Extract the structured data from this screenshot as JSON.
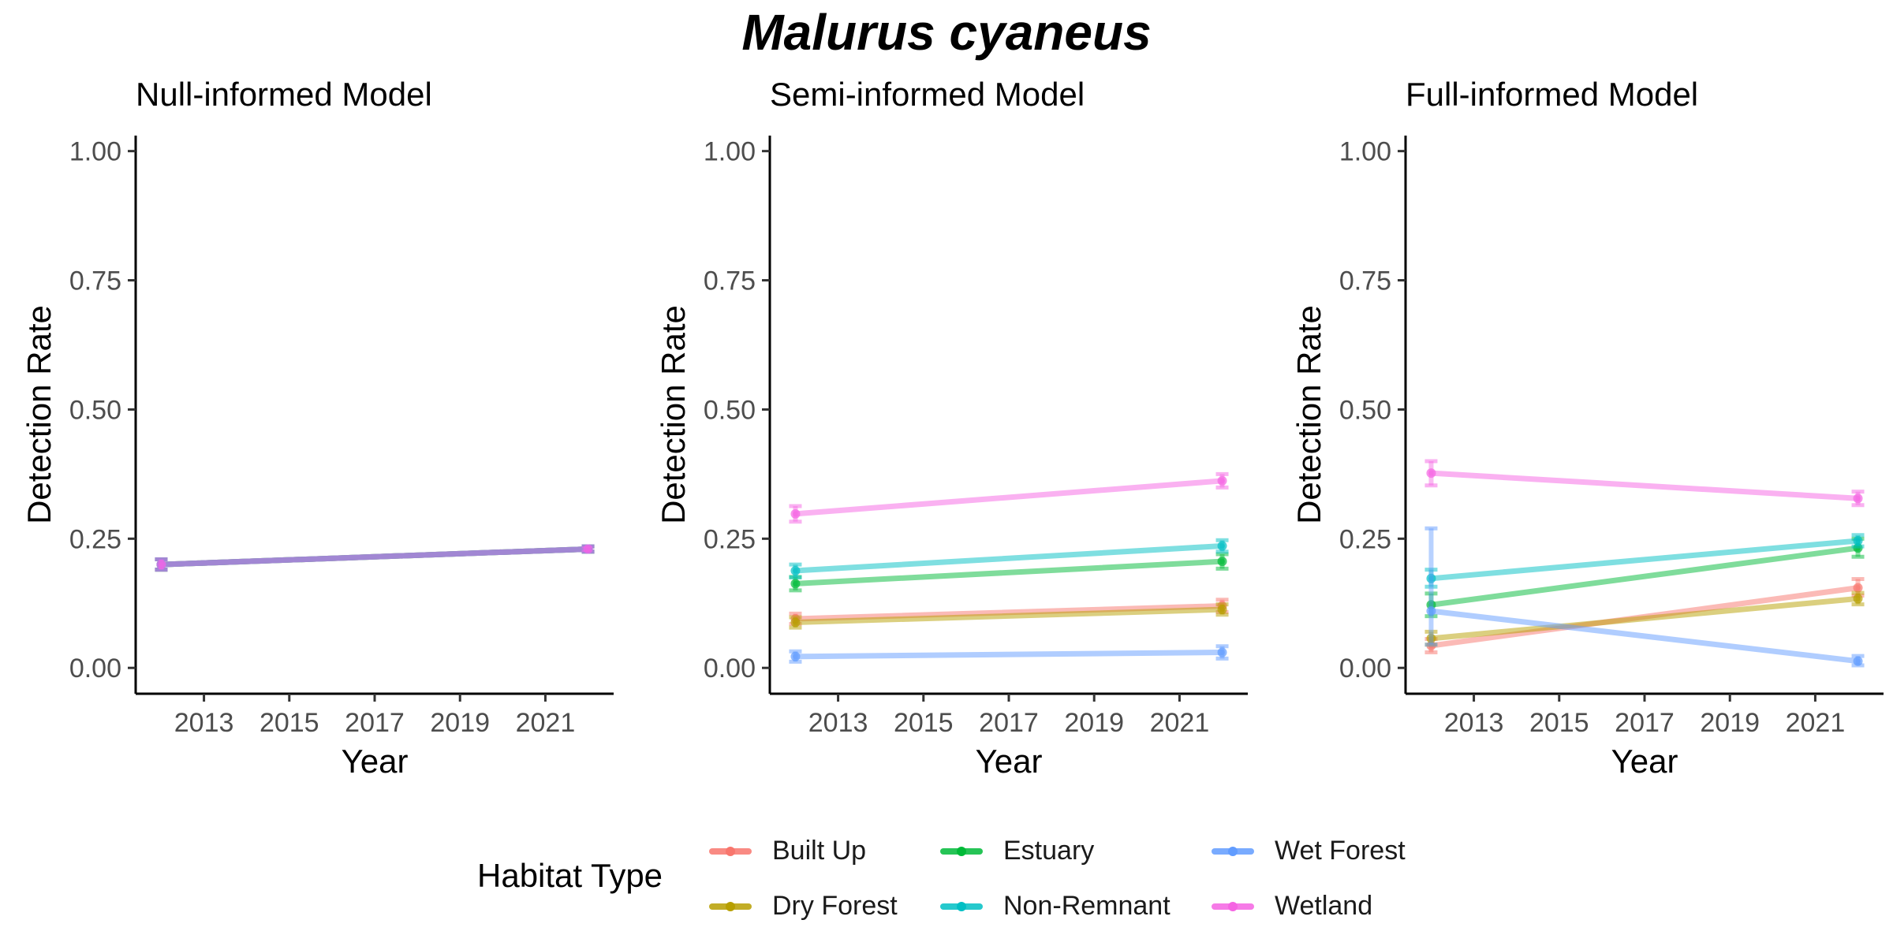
{
  "chart_data": {
    "title": "Malurus cyaneus",
    "type": "line",
    "x_ticks": [
      2013,
      2015,
      2017,
      2019,
      2021
    ],
    "y_ticks": [
      "0.00",
      "0.25",
      "0.50",
      "0.75",
      "1.00"
    ],
    "xlim": [
      2011.4,
      2022.6
    ],
    "ylim": [
      -0.05,
      1.03
    ],
    "xlabel": "Year",
    "ylabel": "Detection Rate",
    "legend": {
      "title": "Habitat Type",
      "placement": "bottom",
      "items": [
        {
          "name": "Built Up",
          "color": "#F8766D"
        },
        {
          "name": "Dry Forest",
          "color": "#B79F00"
        },
        {
          "name": "Estuary",
          "color": "#00BA38"
        },
        {
          "name": "Non-Remnant",
          "color": "#00BFC4"
        },
        {
          "name": "Wet Forest",
          "color": "#619CFF"
        },
        {
          "name": "Wetland",
          "color": "#F564E3"
        }
      ]
    },
    "panels": [
      {
        "title": "Null-informed Model",
        "series": [
          {
            "name": "Built Up",
            "color": "#F8766D",
            "x": [
              2012,
              2022
            ],
            "y": [
              0.2,
              0.23
            ],
            "err": [
              [
                0.19,
                0.21
              ],
              [
                0.225,
                0.235
              ]
            ]
          },
          {
            "name": "Dry Forest",
            "color": "#B79F00",
            "x": [
              2012,
              2022
            ],
            "y": [
              0.2,
              0.23
            ],
            "err": [
              [
                0.19,
                0.21
              ],
              [
                0.225,
                0.235
              ]
            ]
          },
          {
            "name": "Estuary",
            "color": "#00BA38",
            "x": [
              2012,
              2022
            ],
            "y": [
              0.2,
              0.23
            ],
            "err": [
              [
                0.19,
                0.21
              ],
              [
                0.225,
                0.235
              ]
            ]
          },
          {
            "name": "Non-Remnant",
            "color": "#00BFC4",
            "x": [
              2012,
              2022
            ],
            "y": [
              0.2,
              0.23
            ],
            "err": [
              [
                0.19,
                0.21
              ],
              [
                0.225,
                0.235
              ]
            ]
          },
          {
            "name": "Wet Forest",
            "color": "#619CFF",
            "x": [
              2012,
              2022
            ],
            "y": [
              0.2,
              0.23
            ],
            "err": [
              [
                0.19,
                0.21
              ],
              [
                0.225,
                0.235
              ]
            ]
          },
          {
            "name": "Wetland",
            "color": "#F564E3",
            "x": [
              2012,
              2022
            ],
            "y": [
              0.2,
              0.23
            ],
            "err": [
              [
                0.19,
                0.21
              ],
              [
                0.225,
                0.235
              ]
            ]
          }
        ]
      },
      {
        "title": "Semi-informed Model",
        "series": [
          {
            "name": "Built Up",
            "color": "#F8766D",
            "x": [
              2012,
              2022
            ],
            "y": [
              0.095,
              0.12
            ],
            "err": [
              [
                0.085,
                0.105
              ],
              [
                0.108,
                0.132
              ]
            ]
          },
          {
            "name": "Dry Forest",
            "color": "#B79F00",
            "x": [
              2012,
              2022
            ],
            "y": [
              0.088,
              0.113
            ],
            "err": [
              [
                0.078,
                0.098
              ],
              [
                0.103,
                0.123
              ]
            ]
          },
          {
            "name": "Estuary",
            "color": "#00BA38",
            "x": [
              2012,
              2022
            ],
            "y": [
              0.163,
              0.206
            ],
            "err": [
              [
                0.15,
                0.176
              ],
              [
                0.192,
                0.22
              ]
            ]
          },
          {
            "name": "Non-Remnant",
            "color": "#00BFC4",
            "x": [
              2012,
              2022
            ],
            "y": [
              0.188,
              0.236
            ],
            "err": [
              [
                0.175,
                0.2
              ],
              [
                0.225,
                0.247
              ]
            ]
          },
          {
            "name": "Wet Forest",
            "color": "#619CFF",
            "x": [
              2012,
              2022
            ],
            "y": [
              0.022,
              0.03
            ],
            "err": [
              [
                0.012,
                0.032
              ],
              [
                0.018,
                0.042
              ]
            ]
          },
          {
            "name": "Wetland",
            "color": "#F564E3",
            "x": [
              2012,
              2022
            ],
            "y": [
              0.298,
              0.362
            ],
            "err": [
              [
                0.283,
                0.313
              ],
              [
                0.349,
                0.375
              ]
            ]
          }
        ]
      },
      {
        "title": "Full-informed Model",
        "series": [
          {
            "name": "Built Up",
            "color": "#F8766D",
            "x": [
              2012,
              2022
            ],
            "y": [
              0.043,
              0.155
            ],
            "err": [
              [
                0.03,
                0.056
              ],
              [
                0.14,
                0.172
              ]
            ]
          },
          {
            "name": "Dry Forest",
            "color": "#B79F00",
            "x": [
              2012,
              2022
            ],
            "y": [
              0.057,
              0.134
            ],
            "err": [
              [
                0.045,
                0.07
              ],
              [
                0.123,
                0.145
              ]
            ]
          },
          {
            "name": "Estuary",
            "color": "#00BA38",
            "x": [
              2012,
              2022
            ],
            "y": [
              0.122,
              0.232
            ],
            "err": [
              [
                0.1,
                0.144
              ],
              [
                0.215,
                0.25
              ]
            ]
          },
          {
            "name": "Non-Remnant",
            "color": "#00BFC4",
            "x": [
              2012,
              2022
            ],
            "y": [
              0.173,
              0.246
            ],
            "err": [
              [
                0.157,
                0.19
              ],
              [
                0.235,
                0.257
              ]
            ]
          },
          {
            "name": "Wet Forest",
            "color": "#619CFF",
            "x": [
              2012,
              2022
            ],
            "y": [
              0.11,
              0.013
            ],
            "err": [
              [
                0.045,
                0.27
              ],
              [
                0.005,
                0.023
              ]
            ]
          },
          {
            "name": "Wetland",
            "color": "#F564E3",
            "x": [
              2012,
              2022
            ],
            "y": [
              0.377,
              0.328
            ],
            "err": [
              [
                0.353,
                0.4
              ],
              [
                0.315,
                0.341
              ]
            ]
          }
        ]
      }
    ]
  }
}
